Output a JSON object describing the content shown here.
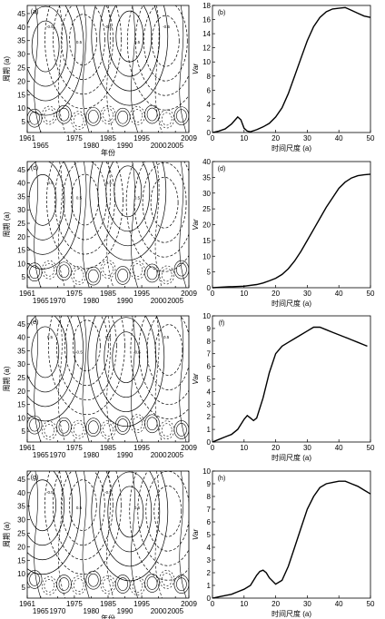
{
  "chart_data": [
    {
      "panel": "(a)",
      "type": "contour",
      "ylabel": "周期 (a)",
      "xlabel": "年份",
      "xticks_top": [
        "1961",
        "1975",
        "1985",
        "1995",
        "2009"
      ],
      "xticks_bottom": [
        "1965",
        "1980",
        "1990",
        "2000",
        "2005"
      ],
      "yticks": [
        "5",
        "10",
        "15",
        "20",
        "25",
        "30",
        "35",
        "40",
        "45"
      ],
      "ylim": [
        1,
        48
      ],
      "contour_labels": [
        "-0.5",
        "0.5",
        "-0.5",
        "0.5",
        "-0.5"
      ]
    },
    {
      "panel": "(b)",
      "type": "line",
      "ylabel": "Var",
      "xlabel": "时间尺度 (a)",
      "xlim": [
        0,
        50
      ],
      "ylim": [
        0,
        18
      ],
      "xticks": [
        "0",
        "10",
        "20",
        "30",
        "40",
        "50"
      ],
      "yticks": [
        "0",
        "2",
        "4",
        "6",
        "8",
        "10",
        "12",
        "14",
        "16",
        "18"
      ],
      "x": [
        0,
        2,
        4,
        6,
        8,
        9,
        10,
        11,
        12,
        14,
        16,
        18,
        20,
        22,
        24,
        26,
        28,
        30,
        32,
        34,
        36,
        38,
        40,
        42,
        44,
        46,
        48,
        50
      ],
      "values": [
        0,
        0.2,
        0.5,
        1.2,
        2.2,
        1.8,
        0.6,
        0.2,
        0.1,
        0.4,
        0.8,
        1.3,
        2.2,
        3.5,
        5.5,
        8.0,
        10.5,
        13.0,
        15.0,
        16.3,
        17.1,
        17.5,
        17.6,
        17.7,
        17.3,
        16.9,
        16.5,
        16.3
      ]
    },
    {
      "panel": "(c)",
      "type": "contour",
      "ylabel": "周期 (a)",
      "xlabel": "",
      "xticks_top": [
        "1961",
        "1975",
        "1985",
        "1995",
        "2009"
      ],
      "xticks_bottom": [
        "1965",
        "1970",
        "1980",
        "1990",
        "2000",
        "2005"
      ],
      "yticks": [
        "5",
        "10",
        "15",
        "20",
        "25",
        "30",
        "35",
        "40",
        "45"
      ],
      "ylim": [
        1,
        48
      ],
      "contour_labels": [
        "-0.5",
        "0.5",
        "-0.5",
        "0.5"
      ]
    },
    {
      "panel": "(d)",
      "type": "line",
      "ylabel": "Var",
      "xlabel": "时间尺度 (a)",
      "xlim": [
        0,
        50
      ],
      "ylim": [
        0,
        40
      ],
      "xticks": [
        "0",
        "10",
        "20",
        "30",
        "40",
        "50"
      ],
      "yticks": [
        "0",
        "5",
        "10",
        "15",
        "20",
        "25",
        "30",
        "35",
        "40"
      ],
      "x": [
        0,
        5,
        10,
        14,
        16,
        18,
        20,
        22,
        24,
        26,
        28,
        30,
        32,
        34,
        36,
        38,
        40,
        42,
        44,
        46,
        48,
        50
      ],
      "values": [
        0,
        0.3,
        0.5,
        1.0,
        1.5,
        2.2,
        3.0,
        4.2,
        6.0,
        8.5,
        11.5,
        15.0,
        18.5,
        22.0,
        25.5,
        28.5,
        31.5,
        33.5,
        34.8,
        35.5,
        35.8,
        36.0
      ]
    },
    {
      "panel": "(e)",
      "type": "contour",
      "ylabel": "周期 (a)",
      "xlabel": "",
      "xticks_top": [
        "1961",
        "1975",
        "1985",
        "1995",
        "2009"
      ],
      "xticks_bottom": [
        "1965",
        "1970",
        "1980",
        "1990",
        "2000",
        "2005"
      ],
      "yticks": [
        "5",
        "10",
        "15",
        "20",
        "25",
        "30",
        "35",
        "40",
        "45"
      ],
      "ylim": [
        1,
        48
      ],
      "contour_labels": [
        "0.5",
        "-0.5",
        "0.5",
        "-0.5",
        "0.5"
      ]
    },
    {
      "panel": "(f)",
      "type": "line",
      "ylabel": "Var",
      "xlabel": "时间尺度 (a)",
      "xlim": [
        0,
        50
      ],
      "ylim": [
        0,
        10
      ],
      "xticks": [
        "0",
        "10",
        "20",
        "30",
        "40",
        "50"
      ],
      "yticks": [
        "0",
        "1",
        "2",
        "3",
        "4",
        "5",
        "6",
        "7",
        "8",
        "9",
        "10"
      ],
      "x": [
        0,
        2,
        4,
        6,
        8,
        10,
        11,
        12,
        13,
        14,
        16,
        18,
        20,
        22,
        24,
        26,
        28,
        30,
        32,
        34,
        36,
        38,
        40,
        42,
        44,
        46,
        48,
        49
      ],
      "values": [
        0,
        0.2,
        0.4,
        0.6,
        1.0,
        1.8,
        2.1,
        1.9,
        1.7,
        1.9,
        3.5,
        5.5,
        7.0,
        7.6,
        7.9,
        8.2,
        8.5,
        8.8,
        9.1,
        9.1,
        8.9,
        8.7,
        8.5,
        8.3,
        8.1,
        7.9,
        7.7,
        7.6
      ]
    },
    {
      "panel": "(g)",
      "type": "contour",
      "ylabel": "周期 (a)",
      "xlabel": "年份",
      "xticks_top": [
        "1961",
        "1975",
        "1985",
        "1995",
        "2009"
      ],
      "xticks_bottom": [
        "1965",
        "1970",
        "1980",
        "1990",
        "2000",
        "2005"
      ],
      "yticks": [
        "5",
        "10",
        "15",
        "20",
        "25",
        "30",
        "35",
        "40",
        "45"
      ],
      "ylim": [
        1,
        48
      ],
      "contour_labels": [
        "-0.5",
        "0.5",
        "-0.5",
        "0.5"
      ]
    },
    {
      "panel": "(h)",
      "type": "line",
      "ylabel": "Var",
      "xlabel": "时间尺度 (a)",
      "xlim": [
        0,
        50
      ],
      "ylim": [
        0,
        10
      ],
      "xticks": [
        "0",
        "10",
        "20",
        "30",
        "40",
        "50"
      ],
      "yticks": [
        "0",
        "1",
        "2",
        "3",
        "4",
        "5",
        "6",
        "7",
        "8",
        "9",
        "10"
      ],
      "x": [
        0,
        2,
        4,
        6,
        8,
        10,
        12,
        14,
        15,
        16,
        17,
        18,
        20,
        22,
        24,
        26,
        28,
        30,
        32,
        34,
        36,
        38,
        40,
        42,
        44,
        46,
        48,
        50
      ],
      "values": [
        0,
        0.1,
        0.2,
        0.3,
        0.5,
        0.7,
        1.0,
        1.8,
        2.1,
        2.2,
        2.0,
        1.6,
        1.1,
        1.4,
        2.5,
        4.0,
        5.5,
        7.0,
        8.0,
        8.7,
        9.0,
        9.1,
        9.2,
        9.2,
        9.0,
        8.8,
        8.5,
        8.2
      ]
    }
  ]
}
